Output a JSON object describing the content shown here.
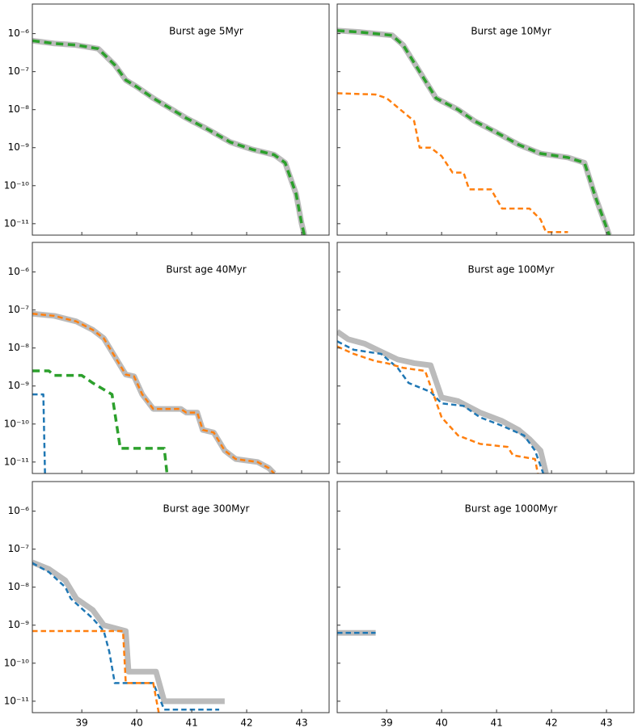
{
  "chart_data": [
    {
      "type": "line",
      "title": "Burst age 5Myr",
      "log_y": true,
      "xlim": [
        38.1,
        43.5
      ],
      "ylim": [
        5e-12,
        6e-06
      ],
      "xticks": [
        39,
        40,
        41,
        42,
        43
      ],
      "xtick_labels": false,
      "yticks": [
        {
          "value": 1e-06,
          "label": "10⁻⁶"
        },
        {
          "value": 1e-07,
          "label": "10⁻⁷"
        },
        {
          "value": 1e-08,
          "label": "10⁻⁸"
        },
        {
          "value": 1e-09,
          "label": "10⁻⁹"
        },
        {
          "value": 1e-10,
          "label": "10⁻¹⁰"
        },
        {
          "value": 1e-11,
          "label": "10⁻¹¹"
        }
      ],
      "series": [
        {
          "color": "#bbbbbb",
          "linestyle": "solid",
          "linewidth": 7,
          "x": [
            38.1,
            38.5,
            38.9,
            39.3,
            39.6,
            39.8,
            40.0,
            40.3,
            40.6,
            40.9,
            41.3,
            41.7,
            42.1,
            42.5,
            42.7,
            42.9,
            43.0,
            43.05
          ],
          "values": [
            6.5e-07,
            5.5e-07,
            5e-07,
            4e-07,
            1.5e-07,
            6e-08,
            4e-08,
            2e-08,
            1.1e-08,
            6e-09,
            3e-09,
            1.4e-09,
            9e-10,
            6.5e-10,
            4e-10,
            6e-11,
            1e-11,
            5e-12
          ]
        },
        {
          "color": "#2ca02c",
          "linestyle": "dashed",
          "linewidth": 3.5,
          "x": [
            38.1,
            38.5,
            38.9,
            39.3,
            39.6,
            39.8,
            40.0,
            40.3,
            40.6,
            40.9,
            41.3,
            41.7,
            42.1,
            42.5,
            42.7,
            42.9,
            43.0,
            43.05
          ],
          "values": [
            6.5e-07,
            5.5e-07,
            5e-07,
            4e-07,
            1.5e-07,
            6e-08,
            4e-08,
            2e-08,
            1.1e-08,
            6e-09,
            3e-09,
            1.4e-09,
            9e-10,
            6.5e-10,
            4e-10,
            6e-11,
            1e-11,
            5e-12
          ]
        }
      ]
    },
    {
      "type": "line",
      "title": "Burst age 10Myr",
      "log_y": true,
      "xlim": [
        38.1,
        43.5
      ],
      "ylim": [
        5e-12,
        6e-06
      ],
      "xticks": [
        39,
        40,
        41,
        42,
        43
      ],
      "xtick_labels": false,
      "yticks": [
        1e-06,
        1e-07,
        1e-08,
        1e-09,
        1e-10,
        1e-11
      ],
      "ytick_labels": false,
      "series": [
        {
          "color": "#bbbbbb",
          "linestyle": "solid",
          "linewidth": 7,
          "x": [
            38.1,
            38.5,
            39.1,
            39.3,
            39.6,
            39.9,
            40.3,
            40.6,
            41.0,
            41.4,
            41.8,
            42.3,
            42.6,
            42.8,
            43.0,
            43.05
          ],
          "values": [
            1.2e-06,
            1.1e-06,
            9e-07,
            5e-07,
            1e-07,
            2e-08,
            1e-08,
            5e-09,
            2.5e-09,
            1.2e-09,
            7e-10,
            5.5e-10,
            4e-10,
            5e-11,
            8e-12,
            5e-12
          ]
        },
        {
          "color": "#2ca02c",
          "linestyle": "dashed",
          "linewidth": 3.5,
          "x": [
            38.1,
            38.5,
            39.1,
            39.3,
            39.6,
            39.9,
            40.3,
            40.6,
            41.0,
            41.4,
            41.8,
            42.3,
            42.6,
            42.8,
            43.0,
            43.05
          ],
          "values": [
            1.2e-06,
            1.1e-06,
            9e-07,
            5e-07,
            1e-07,
            2e-08,
            1e-08,
            5e-09,
            2.5e-09,
            1.2e-09,
            7e-10,
            5.5e-10,
            4e-10,
            5e-11,
            8e-12,
            5e-12
          ]
        },
        {
          "color": "#ff7f0e",
          "linestyle": "dashed",
          "linewidth": 2.5,
          "x": [
            38.1,
            38.8,
            39.0,
            39.5,
            39.6,
            39.8,
            40.0,
            40.2,
            40.4,
            40.5,
            40.9,
            41.1,
            41.6,
            41.8,
            41.9,
            42.3
          ],
          "values": [
            2.7e-08,
            2.5e-08,
            2e-08,
            5e-09,
            1e-09,
            1e-09,
            6e-10,
            2.2e-10,
            2.2e-10,
            8e-11,
            8e-11,
            2.5e-11,
            2.5e-11,
            1.3e-11,
            6e-12,
            6e-12
          ]
        }
      ]
    },
    {
      "type": "line",
      "title": "Burst age 40Myr",
      "log_y": true,
      "xlim": [
        38.1,
        43.5
      ],
      "ylim": [
        5e-12,
        6e-06
      ],
      "xticks": [
        39,
        40,
        41,
        42,
        43
      ],
      "xtick_labels": false,
      "yticks": [
        {
          "value": 1e-06,
          "label": "10⁻⁶"
        },
        {
          "value": 1e-07,
          "label": "10⁻⁷"
        },
        {
          "value": 1e-08,
          "label": "10⁻⁸"
        },
        {
          "value": 1e-09,
          "label": "10⁻⁹"
        },
        {
          "value": 1e-10,
          "label": "10⁻¹⁰"
        },
        {
          "value": 1e-11,
          "label": "10⁻¹¹"
        }
      ],
      "series": [
        {
          "color": "#bbbbbb",
          "linestyle": "solid",
          "linewidth": 7,
          "x": [
            38.1,
            38.5,
            38.9,
            39.2,
            39.4,
            39.6,
            39.8,
            39.95,
            40.1,
            40.3,
            40.8,
            40.9,
            41.1,
            41.2,
            41.4,
            41.6,
            41.8,
            42.2,
            42.4,
            42.5
          ],
          "values": [
            8e-08,
            7e-08,
            5e-08,
            3e-08,
            1.8e-08,
            6e-09,
            2e-09,
            1.8e-09,
            6e-10,
            2.5e-10,
            2.5e-10,
            2e-10,
            2e-10,
            7e-11,
            6e-11,
            2e-11,
            1.2e-11,
            1e-11,
            7e-12,
            5e-12
          ]
        },
        {
          "color": "#ff7f0e",
          "linestyle": "dashed",
          "linewidth": 2.5,
          "x": [
            38.1,
            38.5,
            38.9,
            39.2,
            39.4,
            39.6,
            39.8,
            39.95,
            40.1,
            40.3,
            40.8,
            40.9,
            41.1,
            41.2,
            41.4,
            41.6,
            41.8,
            42.2,
            42.4,
            42.5
          ],
          "values": [
            8e-08,
            7e-08,
            5e-08,
            3e-08,
            1.8e-08,
            6e-09,
            2e-09,
            1.8e-09,
            6e-10,
            2.5e-10,
            2.5e-10,
            2e-10,
            2e-10,
            7e-11,
            6e-11,
            2e-11,
            1.2e-11,
            1e-11,
            7e-12,
            5e-12
          ]
        },
        {
          "color": "#2ca02c",
          "linestyle": "dashed",
          "linewidth": 3.5,
          "x": [
            38.1,
            38.4,
            38.5,
            39.0,
            39.2,
            39.55,
            39.7,
            40.5,
            40.55
          ],
          "values": [
            2.5e-09,
            2.5e-09,
            1.9e-09,
            1.9e-09,
            1.2e-09,
            6e-10,
            2.3e-11,
            2.3e-11,
            5e-12
          ]
        },
        {
          "color": "#1f77b4",
          "linestyle": "dashed",
          "linewidth": 2.5,
          "x": [
            38.1,
            38.3,
            38.33
          ],
          "values": [
            6e-10,
            6e-10,
            5e-12
          ]
        }
      ]
    },
    {
      "type": "line",
      "title": "Burst age 100Myr",
      "log_y": true,
      "xlim": [
        38.1,
        43.5
      ],
      "ylim": [
        5e-12,
        6e-06
      ],
      "xticks": [
        39,
        40,
        41,
        42,
        43
      ],
      "xtick_labels": false,
      "yticks": [
        1e-06,
        1e-07,
        1e-08,
        1e-09,
        1e-10,
        1e-11
      ],
      "ytick_labels": false,
      "series": [
        {
          "color": "#bbbbbb",
          "linestyle": "solid",
          "linewidth": 7,
          "x": [
            38.1,
            38.3,
            38.6,
            38.9,
            39.2,
            39.5,
            39.8,
            40.0,
            40.3,
            40.7,
            41.1,
            41.4,
            41.6,
            41.8,
            41.9
          ],
          "values": [
            2.7e-08,
            1.7e-08,
            1.3e-08,
            8e-09,
            5e-09,
            4e-09,
            3.5e-09,
            5e-10,
            4e-10,
            2e-10,
            1.2e-10,
            7e-11,
            4e-11,
            2e-11,
            5e-12
          ]
        },
        {
          "color": "#1f77b4",
          "linestyle": "dashed",
          "linewidth": 2.5,
          "x": [
            38.1,
            38.4,
            38.9,
            39.2,
            39.4,
            39.8,
            40.0,
            40.4,
            40.7,
            41.1,
            41.5,
            41.7,
            41.85
          ],
          "values": [
            1.5e-08,
            9e-09,
            7e-09,
            3e-09,
            1.2e-09,
            7e-10,
            3.5e-10,
            3e-10,
            1.5e-10,
            9e-11,
            5e-11,
            2e-11,
            5e-12
          ]
        },
        {
          "color": "#ff7f0e",
          "linestyle": "dashed",
          "linewidth": 2.5,
          "x": [
            38.1,
            38.4,
            38.8,
            39.0,
            39.3,
            39.7,
            40.0,
            40.3,
            40.7,
            41.2,
            41.3,
            41.7,
            41.75
          ],
          "values": [
            1.1e-08,
            7e-09,
            4.5e-09,
            4e-09,
            3e-09,
            2.5e-09,
            1.5e-10,
            5e-11,
            3e-11,
            2.5e-11,
            1.5e-11,
            1.2e-11,
            5e-12
          ]
        }
      ]
    },
    {
      "type": "line",
      "title": "Burst age 300Myr",
      "log_y": true,
      "xlim": [
        38.1,
        43.5
      ],
      "ylim": [
        5e-12,
        6e-06
      ],
      "xticks": [
        39,
        40,
        41,
        42,
        43
      ],
      "yticks": [
        {
          "value": 1e-06,
          "label": "10⁻⁶"
        },
        {
          "value": 1e-07,
          "label": "10⁻⁷"
        },
        {
          "value": 1e-08,
          "label": "10⁻⁸"
        },
        {
          "value": 1e-09,
          "label": "10⁻⁹"
        },
        {
          "value": 1e-10,
          "label": "10⁻¹⁰"
        },
        {
          "value": 1e-11,
          "label": "10⁻¹¹"
        }
      ],
      "series": [
        {
          "color": "#bbbbbb",
          "linestyle": "solid",
          "linewidth": 7,
          "x": [
            38.1,
            38.4,
            38.7,
            38.9,
            39.2,
            39.4,
            39.8,
            39.85,
            40.35,
            40.5,
            41.6
          ],
          "values": [
            4.5e-08,
            3e-08,
            1.5e-08,
            5e-09,
            2.5e-09,
            1e-09,
            7e-10,
            6e-11,
            6e-11,
            1e-11,
            1e-11
          ]
        },
        {
          "color": "#1f77b4",
          "linestyle": "dashed",
          "linewidth": 2.5,
          "x": [
            38.1,
            38.4,
            38.7,
            38.8,
            39.2,
            39.4,
            39.5,
            39.6,
            40.3,
            40.5,
            41.5
          ],
          "values": [
            4.3e-08,
            2.5e-08,
            1e-08,
            5e-09,
            1.5e-09,
            7e-10,
            2e-10,
            3e-11,
            3e-11,
            6e-12,
            6e-12
          ]
        },
        {
          "color": "#ff7f0e",
          "linestyle": "dashed",
          "linewidth": 2.5,
          "x": [
            38.1,
            39.75,
            39.8,
            40.3,
            40.4
          ],
          "values": [
            7e-10,
            7e-10,
            3e-11,
            3e-11,
            5e-12
          ]
        }
      ]
    },
    {
      "type": "line",
      "title": "Burst age 1000Myr",
      "log_y": true,
      "xlim": [
        38.1,
        43.5
      ],
      "ylim": [
        5e-12,
        6e-06
      ],
      "xticks": [
        39,
        40,
        41,
        42,
        43
      ],
      "yticks": [
        1e-06,
        1e-07,
        1e-08,
        1e-09,
        1e-10,
        1e-11
      ],
      "ytick_labels": false,
      "series": [
        {
          "color": "#bbbbbb",
          "linestyle": "solid",
          "linewidth": 7,
          "x": [
            38.1,
            38.8
          ],
          "values": [
            6.3e-10,
            6.3e-10
          ]
        },
        {
          "color": "#1f77b4",
          "linestyle": "dashed",
          "linewidth": 2.5,
          "x": [
            38.1,
            38.8
          ],
          "values": [
            6.3e-10,
            6.3e-10
          ]
        }
      ]
    }
  ]
}
